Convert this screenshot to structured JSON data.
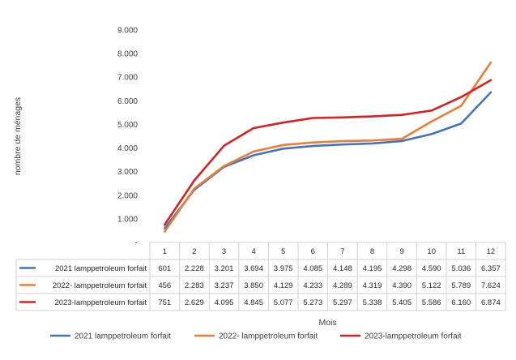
{
  "chart_data": {
    "type": "line",
    "title": "",
    "xlabel": "Mois",
    "ylabel": "nombre de ménages",
    "ylim": [
      0,
      9000
    ],
    "grid": false,
    "legend_position": "bottom",
    "y_ticks": [
      {
        "value": 0,
        "label": "-"
      },
      {
        "value": 1000,
        "label": "1.000"
      },
      {
        "value": 2000,
        "label": "2.000"
      },
      {
        "value": 3000,
        "label": "3.000"
      },
      {
        "value": 4000,
        "label": "4.000"
      },
      {
        "value": 5000,
        "label": "5.000"
      },
      {
        "value": 6000,
        "label": "6.000"
      },
      {
        "value": 7000,
        "label": "7.000"
      },
      {
        "value": 8000,
        "label": "8.000"
      },
      {
        "value": 9000,
        "label": "9.000"
      }
    ],
    "categories": [
      "1",
      "2",
      "3",
      "4",
      "5",
      "6",
      "7",
      "8",
      "9",
      "10",
      "11",
      "12"
    ],
    "series": [
      {
        "name": "2021 lamppetroleum forfait",
        "color": "#4472C4",
        "values": [
          601,
          2228,
          3201,
          3694,
          3975,
          4085,
          4148,
          4195,
          4298,
          4590,
          5036,
          6357
        ],
        "labels": [
          "601",
          "2.228",
          "3.201",
          "3.694",
          "3.975",
          "4.085",
          "4.148",
          "4.195",
          "4.298",
          "4.590",
          "5.036",
          "6.357"
        ]
      },
      {
        "name": "2022- lamppetroleum forfait",
        "color": "#ED7D31",
        "values": [
          456,
          2283,
          3237,
          3850,
          4129,
          4233,
          4289,
          4319,
          4390,
          5122,
          5789,
          7624
        ],
        "labels": [
          "456",
          "2.283",
          "3.237",
          "3.850",
          "4.129",
          "4.233",
          "4.289",
          "4.319",
          "4.390",
          "5.122",
          "5.789",
          "7.624"
        ]
      },
      {
        "name": "2023-lamppetroleum forfait",
        "color": "#D92020",
        "values": [
          751,
          2629,
          4095,
          4845,
          5077,
          5273,
          5297,
          5338,
          5405,
          5586,
          6160,
          6874
        ],
        "labels": [
          "751",
          "2.629",
          "4.095",
          "4.845",
          "5.077",
          "5.273",
          "5.297",
          "5.338",
          "5.405",
          "5.586",
          "6.160",
          "6.874"
        ]
      }
    ]
  }
}
